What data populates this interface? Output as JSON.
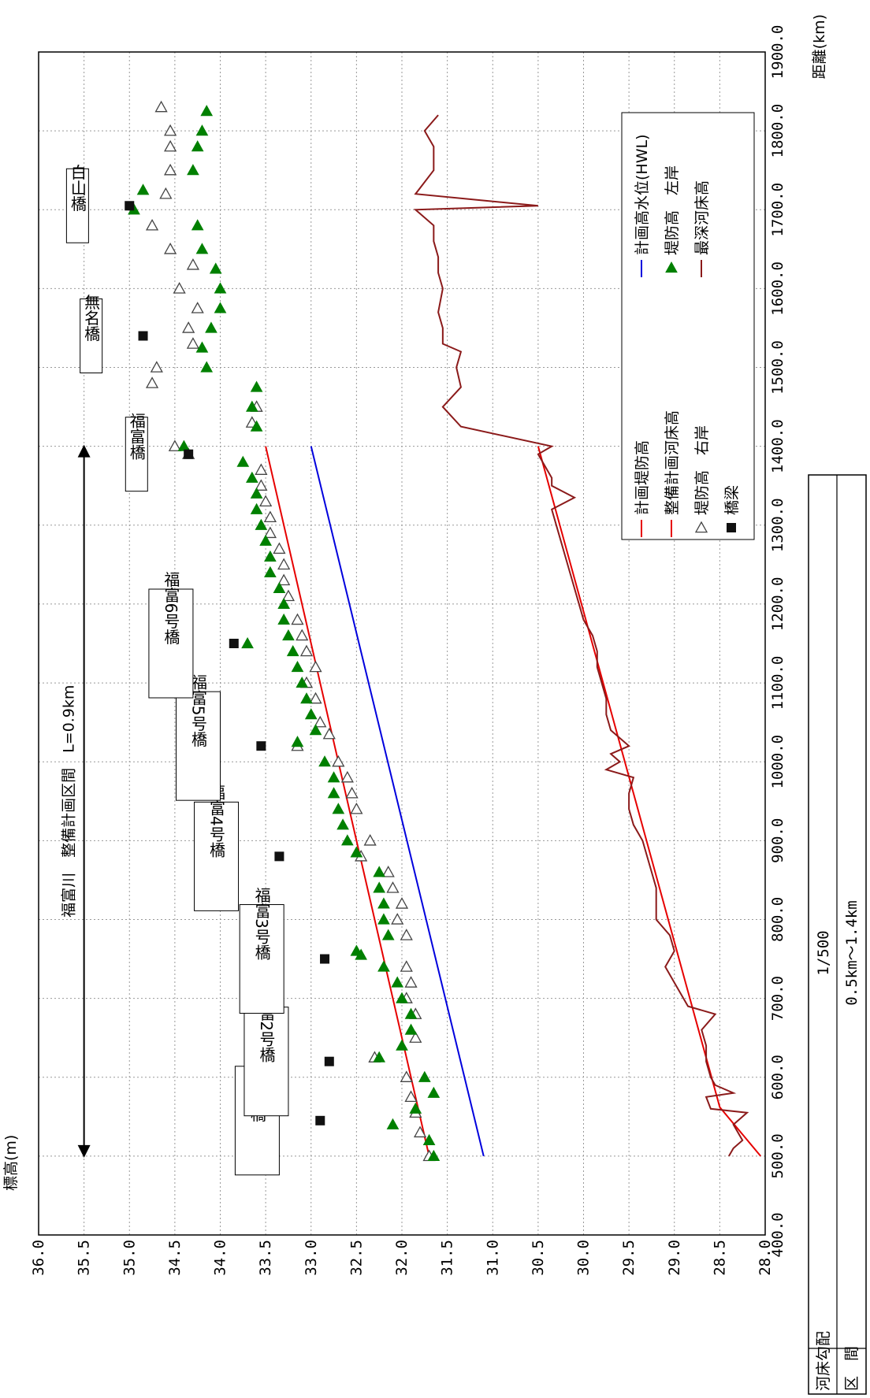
{
  "chart_data": {
    "type": "line",
    "orientation": "rotated-90-clockwise",
    "xlabel": "距離(km)",
    "ylabel": "標高(m)",
    "xlim": [
      400,
      1900
    ],
    "ylim": [
      28.0,
      36.0
    ],
    "x_ticks": [
      "400.0",
      "500.0",
      "600.0",
      "700.0",
      "800.0",
      "900.0",
      "1000.0",
      "1100.0",
      "1200.0",
      "1300.0",
      "1400.0",
      "1500.0",
      "1600.0",
      "1700.0",
      "1800.0",
      "1900.0"
    ],
    "y_ticks": [
      "28.0",
      "28.5",
      "29.0",
      "29.5",
      "30.0",
      "30.5",
      "31.0",
      "31.5",
      "32.0",
      "32.5",
      "33.0",
      "33.5",
      "34.0",
      "34.5",
      "35.0",
      "35.5",
      "36.0"
    ],
    "grid": true,
    "legend_position": "upper-right (rotated)",
    "series": [
      {
        "name": "計画堤防高",
        "kind": "line",
        "color": "#e60000",
        "x": [
          500,
          1400
        ],
        "y": [
          31.7,
          33.5
        ]
      },
      {
        "name": "計画高水位(HWL)",
        "kind": "line",
        "color": "#0000dd",
        "x": [
          500,
          1400
        ],
        "y": [
          31.1,
          33.0
        ]
      },
      {
        "name": "整備計画河床高",
        "kind": "line",
        "color": "#e60000",
        "x": [
          500,
          562,
          1400
        ],
        "y": [
          28.05,
          28.5,
          30.5
        ]
      },
      {
        "name": "堤防高　右岸",
        "kind": "marker",
        "marker": "open-triangle",
        "color": "#333333",
        "x": [
          500,
          530,
          555,
          575,
          600,
          625,
          650,
          680,
          700,
          720,
          740,
          780,
          800,
          820,
          840,
          860,
          880,
          900,
          940,
          960,
          980,
          1000,
          1020,
          1035,
          1050,
          1080,
          1100,
          1120,
          1140,
          1160,
          1180,
          1210,
          1230,
          1250,
          1270,
          1290,
          1310,
          1330,
          1350,
          1370,
          1390,
          1400,
          1430,
          1450,
          1480,
          1500,
          1530,
          1550,
          1575,
          1600,
          1630,
          1650,
          1680,
          1720,
          1750,
          1780,
          1800,
          1830
        ],
        "y": [
          31.7,
          31.8,
          31.85,
          31.9,
          31.95,
          32.3,
          31.85,
          31.85,
          31.95,
          31.9,
          31.95,
          31.95,
          32.05,
          32.0,
          32.1,
          32.15,
          32.45,
          32.35,
          32.5,
          32.55,
          32.6,
          32.7,
          33.15,
          32.8,
          32.9,
          32.95,
          33.05,
          32.95,
          33.05,
          33.1,
          33.15,
          33.25,
          33.3,
          33.3,
          33.35,
          33.45,
          33.45,
          33.5,
          33.55,
          33.55,
          34.35,
          34.5,
          33.65,
          33.6,
          34.75,
          34.7,
          34.3,
          34.35,
          34.25,
          34.45,
          34.3,
          34.55,
          34.75,
          34.6,
          34.55,
          34.55,
          34.55,
          34.65
        ]
      },
      {
        "name": "堤防高　左岸",
        "kind": "marker",
        "marker": "filled-triangle",
        "color": "#008000",
        "x": [
          500,
          520,
          540,
          560,
          580,
          600,
          625,
          640,
          660,
          680,
          700,
          720,
          740,
          755,
          760,
          780,
          800,
          820,
          840,
          860,
          885,
          900,
          920,
          940,
          960,
          980,
          1000,
          1025,
          1040,
          1060,
          1080,
          1100,
          1120,
          1140,
          1150,
          1160,
          1180,
          1200,
          1220,
          1240,
          1260,
          1280,
          1300,
          1320,
          1340,
          1360,
          1380,
          1400,
          1425,
          1450,
          1475,
          1500,
          1525,
          1550,
          1575,
          1600,
          1625,
          1650,
          1680,
          1700,
          1725,
          1750,
          1780,
          1800,
          1825
        ],
        "y": [
          31.65,
          31.7,
          32.1,
          31.85,
          31.65,
          31.75,
          32.25,
          32.0,
          31.9,
          31.9,
          32.0,
          32.05,
          32.2,
          32.45,
          32.5,
          32.15,
          32.2,
          32.2,
          32.25,
          32.25,
          32.5,
          32.6,
          32.65,
          32.7,
          32.75,
          32.75,
          32.85,
          33.15,
          32.95,
          33.0,
          33.05,
          33.1,
          33.15,
          33.2,
          33.7,
          33.25,
          33.3,
          33.3,
          33.35,
          33.45,
          33.45,
          33.5,
          33.55,
          33.6,
          33.6,
          33.65,
          33.75,
          34.4,
          33.6,
          33.65,
          33.6,
          34.15,
          34.2,
          34.1,
          34.0,
          34.0,
          34.05,
          34.2,
          34.25,
          34.95,
          34.85,
          34.3,
          34.25,
          34.2,
          34.15
        ]
      },
      {
        "name": "最深河床高",
        "kind": "line",
        "color": "#8b1a1a",
        "x": [
          500,
          510,
          520,
          530,
          540,
          555,
          560,
          575,
          580,
          590,
          600,
          620,
          640,
          660,
          680,
          690,
          700,
          720,
          740,
          760,
          780,
          800,
          820,
          840,
          860,
          880,
          900,
          920,
          940,
          960,
          980,
          990,
          1000,
          1010,
          1020,
          1040,
          1060,
          1080,
          1100,
          1120,
          1140,
          1160,
          1180,
          1200,
          1220,
          1240,
          1260,
          1280,
          1300,
          1320,
          1335,
          1350,
          1360,
          1380,
          1390,
          1400,
          1425,
          1450,
          1475,
          1500,
          1520,
          1530,
          1550,
          1570,
          1600,
          1620,
          1640,
          1660,
          1680,
          1700,
          1705,
          1720,
          1750,
          1780,
          1800,
          1820
        ],
        "y": [
          28.4,
          28.35,
          28.25,
          28.3,
          28.35,
          28.2,
          28.6,
          28.65,
          28.35,
          28.55,
          28.6,
          28.65,
          28.65,
          28.7,
          28.55,
          28.85,
          28.9,
          29.0,
          29.1,
          29.0,
          29.05,
          29.2,
          29.2,
          29.2,
          29.25,
          29.3,
          29.35,
          29.45,
          29.5,
          29.5,
          29.45,
          29.75,
          29.6,
          29.7,
          29.5,
          29.7,
          29.75,
          29.75,
          29.8,
          29.85,
          29.85,
          29.9,
          30.0,
          30.05,
          30.1,
          30.15,
          30.2,
          30.25,
          30.3,
          30.35,
          30.1,
          30.35,
          30.35,
          30.45,
          30.5,
          30.35,
          31.35,
          31.55,
          31.35,
          31.4,
          31.35,
          31.55,
          31.55,
          31.6,
          31.55,
          31.6,
          31.6,
          31.65,
          31.65,
          31.85,
          30.5,
          31.85,
          31.65,
          31.65,
          31.75,
          31.6
        ]
      },
      {
        "name": "橋梁",
        "kind": "marker",
        "marker": "filled-square",
        "color": "#111111",
        "x": [
          545,
          620,
          750,
          880,
          1020,
          1150,
          1390,
          1540,
          1705
        ],
        "y": [
          32.9,
          32.8,
          32.85,
          33.35,
          33.55,
          33.85,
          34.35,
          34.85,
          35.0
        ]
      }
    ],
    "bridges": [
      {
        "label": "福富1号橋",
        "x": 545
      },
      {
        "label": "福富2号橋",
        "x": 620
      },
      {
        "label": "福富3号橋",
        "x": 750
      },
      {
        "label": "福富4号橋",
        "x": 880
      },
      {
        "label": "福富5号橋",
        "x": 1020
      },
      {
        "label": "福富6号橋",
        "x": 1150
      },
      {
        "label": "福富橋",
        "x": 1390
      },
      {
        "label": "無名橋",
        "x": 1540
      },
      {
        "label": "白山橋",
        "x": 1705
      }
    ],
    "section": {
      "label": "福富川　整備計画区間　L=0.9km",
      "x_start": 500,
      "x_end": 1400,
      "y": 35.5
    },
    "slope_table": {
      "row1_label": "河床勾配",
      "row1_value": "1/500",
      "row2_label": "区　間",
      "row2_value": "0.5km～1.4km"
    }
  }
}
